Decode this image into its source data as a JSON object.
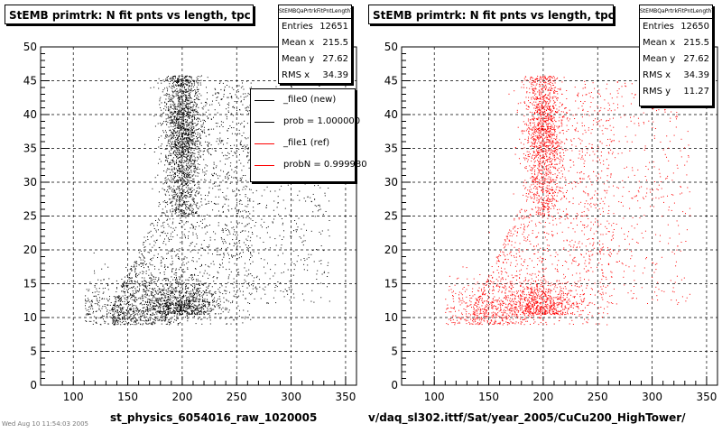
{
  "chart_data": [
    {
      "type": "scatter",
      "title": "StEMB primtrk: N fit pnts vs length, tpc",
      "xlabel": "st_physics_6054016_raw_1020005",
      "ylabel": "",
      "xlim": [
        70,
        360
      ],
      "ylim": [
        0,
        50
      ],
      "x_ticks": [
        100,
        150,
        200,
        250,
        300,
        350
      ],
      "y_ticks": [
        0,
        5,
        10,
        15,
        20,
        25,
        30,
        35,
        40,
        45,
        50
      ],
      "grid": true,
      "color": "#000000",
      "stats": {
        "name": "StEMBQaPrtrkFitPntLengthT",
        "rows": [
          {
            "label": "Entries",
            "value": "12651"
          },
          {
            "label": "Mean x",
            "value": "215.5"
          },
          {
            "label": "Mean y",
            "value": "27.62"
          },
          {
            "label": "RMS x",
            "value": "34.39"
          }
        ]
      },
      "legend": {
        "placement": "top-right",
        "entries": [
          {
            "label": "_file0 (new)",
            "color": "#000000"
          },
          {
            "label": "prob = 1.000000",
            "color": "#000000"
          },
          {
            "label": "_file1 (ref)",
            "color": "#ff0000"
          },
          {
            "label": "probN = 0.999980",
            "color": "#ff0000"
          }
        ]
      }
    },
    {
      "type": "scatter",
      "title": "StEMB primtrk: N fit pnts vs length, tpc",
      "xlabel": "v/daq_sl302.ittf/Sat/year_2005/CuCu200_HighTower/",
      "ylabel": "",
      "xlim": [
        70,
        360
      ],
      "ylim": [
        0,
        50
      ],
      "x_ticks": [
        100,
        150,
        200,
        250,
        300,
        350
      ],
      "y_ticks": [
        0,
        5,
        10,
        15,
        20,
        25,
        30,
        35,
        40,
        45,
        50
      ],
      "grid": true,
      "color": "#ff0000",
      "stats": {
        "name": "StEMBQaPrtrkFitPntLengthT",
        "rows": [
          {
            "label": "Entries",
            "value": "12650"
          },
          {
            "label": "Mean x",
            "value": "215.5"
          },
          {
            "label": "Mean y",
            "value": "27.62"
          },
          {
            "label": "RMS x",
            "value": "34.39"
          },
          {
            "label": "RMS y",
            "value": "11.27"
          }
        ]
      }
    }
  ],
  "footer_text": "Wed Aug 10 11:54:03 2005"
}
